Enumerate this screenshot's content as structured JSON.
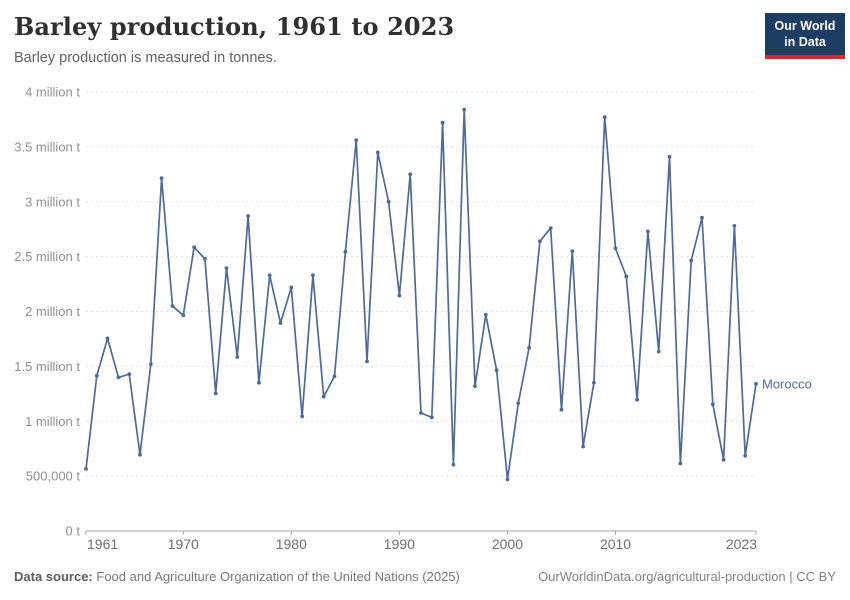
{
  "header": {
    "title": "Barley production, 1961 to 2023",
    "subtitle": "Barley production is measured in tonnes.",
    "logo": {
      "line1": "Our World",
      "line2": "in Data",
      "bg": "#1d3d63",
      "accent": "#e0262c"
    }
  },
  "colors": {
    "line": "#4C6A9C",
    "grid": "#e0e0e0",
    "axis": "#a5a5a5"
  },
  "chart_data": {
    "type": "line",
    "title": "Barley production, 1961 to 2023",
    "unit": "tonnes",
    "grid": "horizontal-dashed",
    "legend_position": "end-of-line-label",
    "x_range": [
      1961,
      2023
    ],
    "ylim": [
      0,
      4000000
    ],
    "y_ticks": [
      {
        "value": 0,
        "label": "0 t"
      },
      {
        "value": 500000,
        "label": "500,000 t"
      },
      {
        "value": 1000000,
        "label": "1 million t"
      },
      {
        "value": 1500000,
        "label": "1.5 million t"
      },
      {
        "value": 2000000,
        "label": "2 million t"
      },
      {
        "value": 2500000,
        "label": "2.5 million t"
      },
      {
        "value": 3000000,
        "label": "3 million t"
      },
      {
        "value": 3500000,
        "label": "3.5 million t"
      },
      {
        "value": 4000000,
        "label": "4 million t"
      }
    ],
    "x_ticks": [
      "1961",
      "1970",
      "1980",
      "1990",
      "2000",
      "2010",
      "2023"
    ],
    "series": [
      {
        "name": "Morocco",
        "color": "#4C6A9C",
        "x": [
          1961,
          1962,
          1963,
          1964,
          1965,
          1966,
          1967,
          1968,
          1969,
          1970,
          1971,
          1972,
          1973,
          1974,
          1975,
          1976,
          1977,
          1978,
          1979,
          1980,
          1981,
          1982,
          1983,
          1984,
          1985,
          1986,
          1987,
          1988,
          1989,
          1990,
          1991,
          1992,
          1993,
          1994,
          1995,
          1996,
          1997,
          1998,
          1999,
          2000,
          2001,
          2002,
          2003,
          2004,
          2005,
          2006,
          2007,
          2008,
          2009,
          2010,
          2011,
          2012,
          2013,
          2014,
          2015,
          2016,
          2017,
          2018,
          2019,
          2020,
          2021,
          2022,
          2023
        ],
        "values": [
          566000,
          1415000,
          1755000,
          1400000,
          1430000,
          695000,
          1520000,
          3215000,
          2050000,
          1965000,
          2585000,
          2480000,
          1255000,
          2395000,
          1585000,
          2870000,
          1350000,
          2330000,
          1895000,
          2220000,
          1045000,
          2330000,
          1225000,
          1410000,
          2545000,
          3560000,
          1545000,
          3450000,
          3000000,
          2145000,
          3250000,
          1075000,
          1035000,
          3720000,
          605000,
          3840000,
          1320000,
          1970000,
          1465000,
          470000,
          1165000,
          1670000,
          2640000,
          2760000,
          1105000,
          2550000,
          770000,
          1350000,
          3770000,
          2575000,
          2320000,
          1195000,
          2730000,
          1635000,
          3410000,
          615000,
          2465000,
          2855000,
          1155000,
          650000,
          2780000,
          685000,
          1340000
        ]
      }
    ]
  },
  "footer": {
    "source_label": "Data source:",
    "source_value": "Food and Agriculture Organization of the United Nations (2025)",
    "credit": "OurWorldinData.org/agricultural-production | CC BY"
  }
}
